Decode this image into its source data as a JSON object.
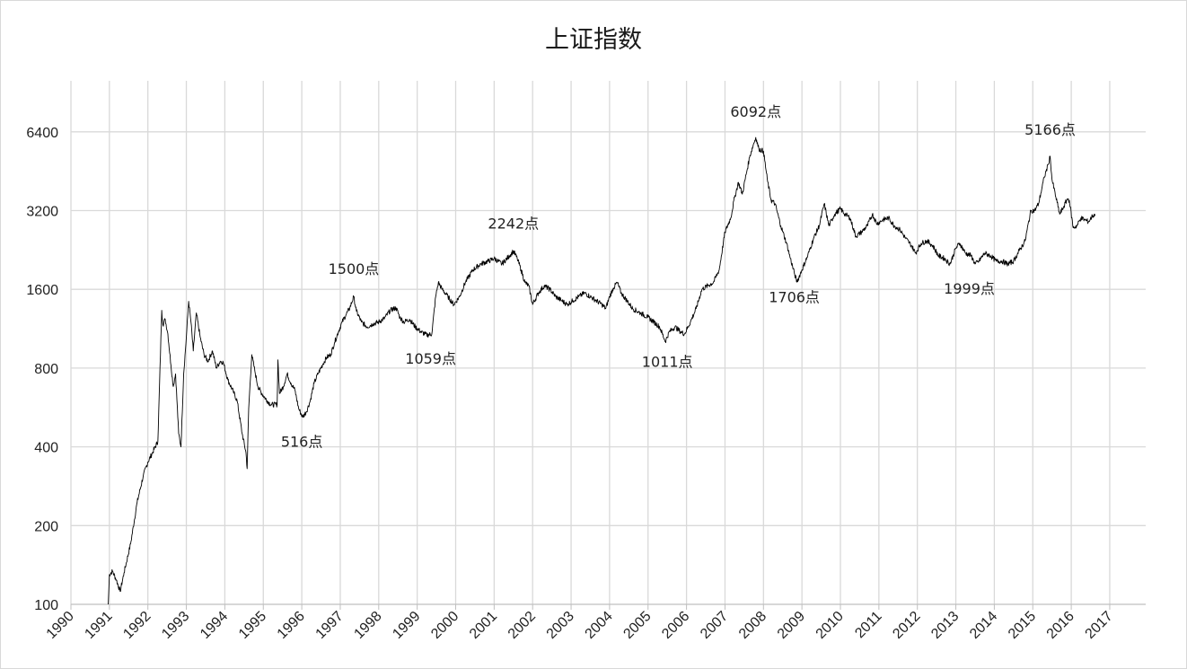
{
  "chart_data": {
    "type": "line",
    "title": "上证指数",
    "xlabel": "",
    "ylabel": "",
    "x_scale": "linear",
    "y_scale": "log2",
    "xlim": [
      1990,
      2018
    ],
    "ylim": [
      100,
      12800
    ],
    "grid": true,
    "x_ticks": [
      "1990",
      "1991",
      "1992",
      "1993",
      "1994",
      "1995",
      "1996",
      "1997",
      "1998",
      "1999",
      "2000",
      "2001",
      "2002",
      "2003",
      "2004",
      "2005",
      "2006",
      "2007",
      "2008",
      "2009",
      "2010",
      "2011",
      "2012",
      "2013",
      "2014",
      "2015",
      "2016",
      "2017"
    ],
    "y_ticks": [
      "100",
      "200",
      "400",
      "800",
      "1600",
      "3200",
      "6400"
    ],
    "series": [
      {
        "color": "#000000",
        "points": [
          [
            1990.97,
            100
          ],
          [
            1991.0,
            130
          ],
          [
            1991.08,
            134
          ],
          [
            1991.18,
            124
          ],
          [
            1991.28,
            112
          ],
          [
            1991.38,
            132
          ],
          [
            1991.55,
            170
          ],
          [
            1991.72,
            245
          ],
          [
            1991.88,
            310
          ],
          [
            1992.0,
            350
          ],
          [
            1992.12,
            380
          ],
          [
            1992.26,
            420
          ],
          [
            1992.36,
            1330
          ],
          [
            1992.39,
            1170
          ],
          [
            1992.45,
            1230
          ],
          [
            1992.52,
            1080
          ],
          [
            1992.6,
            820
          ],
          [
            1992.66,
            680
          ],
          [
            1992.72,
            760
          ],
          [
            1992.8,
            450
          ],
          [
            1992.86,
            400
          ],
          [
            1992.93,
            760
          ],
          [
            1993.0,
            1050
          ],
          [
            1993.06,
            1440
          ],
          [
            1993.12,
            1200
          ],
          [
            1993.18,
            930
          ],
          [
            1993.26,
            1300
          ],
          [
            1993.36,
            1050
          ],
          [
            1993.46,
            900
          ],
          [
            1993.56,
            850
          ],
          [
            1993.68,
            930
          ],
          [
            1993.78,
            800
          ],
          [
            1993.88,
            850
          ],
          [
            1993.96,
            840
          ],
          [
            1994.08,
            720
          ],
          [
            1994.22,
            650
          ],
          [
            1994.32,
            600
          ],
          [
            1994.45,
            450
          ],
          [
            1994.55,
            380
          ],
          [
            1994.58,
            330
          ],
          [
            1994.62,
            560
          ],
          [
            1994.7,
            900
          ],
          [
            1994.78,
            780
          ],
          [
            1994.86,
            680
          ],
          [
            1994.96,
            640
          ],
          [
            1995.1,
            600
          ],
          [
            1995.2,
            580
          ],
          [
            1995.36,
            580
          ],
          [
            1995.38,
            860
          ],
          [
            1995.42,
            640
          ],
          [
            1995.52,
            680
          ],
          [
            1995.62,
            760
          ],
          [
            1995.72,
            700
          ],
          [
            1995.82,
            660
          ],
          [
            1995.92,
            560
          ],
          [
            1996.02,
            520
          ],
          [
            1996.12,
            545
          ],
          [
            1996.22,
            600
          ],
          [
            1996.32,
            700
          ],
          [
            1996.42,
            760
          ],
          [
            1996.55,
            830
          ],
          [
            1996.65,
            880
          ],
          [
            1996.75,
            900
          ],
          [
            1996.85,
            1000
          ],
          [
            1996.95,
            1100
          ],
          [
            1997.05,
            1200
          ],
          [
            1997.15,
            1280
          ],
          [
            1997.25,
            1360
          ],
          [
            1997.35,
            1500
          ],
          [
            1997.42,
            1320
          ],
          [
            1997.55,
            1200
          ],
          [
            1997.7,
            1150
          ],
          [
            1997.85,
            1180
          ],
          [
            1998.0,
            1200
          ],
          [
            1998.15,
            1240
          ],
          [
            1998.3,
            1330
          ],
          [
            1998.45,
            1360
          ],
          [
            1998.55,
            1250
          ],
          [
            1998.65,
            1200
          ],
          [
            1998.8,
            1230
          ],
          [
            1998.95,
            1150
          ],
          [
            1999.1,
            1100
          ],
          [
            1999.25,
            1070
          ],
          [
            1999.38,
            1080
          ],
          [
            1999.48,
            1500
          ],
          [
            1999.55,
            1700
          ],
          [
            1999.65,
            1600
          ],
          [
            1999.8,
            1500
          ],
          [
            1999.95,
            1400
          ],
          [
            2000.1,
            1500
          ],
          [
            2000.25,
            1700
          ],
          [
            2000.45,
            1900
          ],
          [
            2000.65,
            2000
          ],
          [
            2000.85,
            2050
          ],
          [
            2001.0,
            2100
          ],
          [
            2001.2,
            2000
          ],
          [
            2001.4,
            2150
          ],
          [
            2001.5,
            2242
          ],
          [
            2001.6,
            2100
          ],
          [
            2001.7,
            1900
          ],
          [
            2001.8,
            1700
          ],
          [
            2001.9,
            1650
          ],
          [
            2002.0,
            1400
          ],
          [
            2002.15,
            1550
          ],
          [
            2002.3,
            1650
          ],
          [
            2002.45,
            1600
          ],
          [
            2002.6,
            1500
          ],
          [
            2002.75,
            1450
          ],
          [
            2002.9,
            1400
          ],
          [
            2003.05,
            1450
          ],
          [
            2003.2,
            1500
          ],
          [
            2003.35,
            1550
          ],
          [
            2003.5,
            1500
          ],
          [
            2003.65,
            1450
          ],
          [
            2003.8,
            1400
          ],
          [
            2003.9,
            1350
          ],
          [
            2004.0,
            1500
          ],
          [
            2004.1,
            1620
          ],
          [
            2004.2,
            1700
          ],
          [
            2004.3,
            1550
          ],
          [
            2004.45,
            1450
          ],
          [
            2004.6,
            1350
          ],
          [
            2004.8,
            1300
          ],
          [
            2005.0,
            1250
          ],
          [
            2005.15,
            1200
          ],
          [
            2005.3,
            1150
          ],
          [
            2005.45,
            1011
          ],
          [
            2005.55,
            1100
          ],
          [
            2005.7,
            1150
          ],
          [
            2005.85,
            1100
          ],
          [
            2005.95,
            1080
          ],
          [
            2006.1,
            1200
          ],
          [
            2006.25,
            1350
          ],
          [
            2006.4,
            1600
          ],
          [
            2006.55,
            1650
          ],
          [
            2006.7,
            1700
          ],
          [
            2006.85,
            1900
          ],
          [
            2007.0,
            2650
          ],
          [
            2007.15,
            3000
          ],
          [
            2007.25,
            3600
          ],
          [
            2007.35,
            4100
          ],
          [
            2007.45,
            3700
          ],
          [
            2007.55,
            4400
          ],
          [
            2007.65,
            5200
          ],
          [
            2007.75,
            5800
          ],
          [
            2007.8,
            6092
          ],
          [
            2007.88,
            5500
          ],
          [
            2008.0,
            5400
          ],
          [
            2008.1,
            4200
          ],
          [
            2008.2,
            3500
          ],
          [
            2008.3,
            3400
          ],
          [
            2008.45,
            2800
          ],
          [
            2008.6,
            2400
          ],
          [
            2008.7,
            2100
          ],
          [
            2008.8,
            1850
          ],
          [
            2008.87,
            1706
          ],
          [
            2009.0,
            1900
          ],
          [
            2009.15,
            2150
          ],
          [
            2009.3,
            2500
          ],
          [
            2009.45,
            2800
          ],
          [
            2009.58,
            3400
          ],
          [
            2009.7,
            2800
          ],
          [
            2009.85,
            3100
          ],
          [
            2010.0,
            3250
          ],
          [
            2010.12,
            3100
          ],
          [
            2010.25,
            3000
          ],
          [
            2010.4,
            2550
          ],
          [
            2010.55,
            2650
          ],
          [
            2010.7,
            2800
          ],
          [
            2010.83,
            3100
          ],
          [
            2010.95,
            2850
          ],
          [
            2011.1,
            2950
          ],
          [
            2011.25,
            3000
          ],
          [
            2011.4,
            2800
          ],
          [
            2011.55,
            2700
          ],
          [
            2011.7,
            2500
          ],
          [
            2011.85,
            2350
          ],
          [
            2011.95,
            2200
          ],
          [
            2012.1,
            2400
          ],
          [
            2012.25,
            2450
          ],
          [
            2012.4,
            2350
          ],
          [
            2012.55,
            2150
          ],
          [
            2012.7,
            2100
          ],
          [
            2012.85,
            2000
          ],
          [
            2013.0,
            2300
          ],
          [
            2013.1,
            2400
          ],
          [
            2013.25,
            2200
          ],
          [
            2013.4,
            2150
          ],
          [
            2013.5,
            1999
          ],
          [
            2013.6,
            2050
          ],
          [
            2013.75,
            2200
          ],
          [
            2013.9,
            2150
          ],
          [
            2014.05,
            2050
          ],
          [
            2014.2,
            2050
          ],
          [
            2014.35,
            2000
          ],
          [
            2014.5,
            2050
          ],
          [
            2014.65,
            2250
          ],
          [
            2014.8,
            2450
          ],
          [
            2014.95,
            3200
          ],
          [
            2015.05,
            3200
          ],
          [
            2015.15,
            3400
          ],
          [
            2015.3,
            4300
          ],
          [
            2015.4,
            4800
          ],
          [
            2015.45,
            5166
          ],
          [
            2015.5,
            4200
          ],
          [
            2015.6,
            3600
          ],
          [
            2015.7,
            3100
          ],
          [
            2015.8,
            3300
          ],
          [
            2015.9,
            3550
          ],
          [
            2015.95,
            3500
          ],
          [
            2016.05,
            2750
          ],
          [
            2016.15,
            2800
          ],
          [
            2016.25,
            3000
          ],
          [
            2016.35,
            2950
          ],
          [
            2016.45,
            2900
          ],
          [
            2016.55,
            3050
          ],
          [
            2016.62,
            3100
          ]
        ]
      }
    ],
    "annotations": [
      {
        "text": "516点",
        "x": 1996.0,
        "y": 400
      },
      {
        "text": "1500点",
        "x": 1997.35,
        "y": 1830
      },
      {
        "text": "1059点",
        "x": 1999.35,
        "y": 830
      },
      {
        "text": "2242点",
        "x": 2001.5,
        "y": 2730
      },
      {
        "text": "1011点",
        "x": 2005.5,
        "y": 810
      },
      {
        "text": "6092点",
        "x": 2007.8,
        "y": 7300
      },
      {
        "text": "1706点",
        "x": 2008.8,
        "y": 1430
      },
      {
        "text": "1999点",
        "x": 2013.35,
        "y": 1540
      },
      {
        "text": "5166点",
        "x": 2015.45,
        "y": 6250
      }
    ]
  }
}
